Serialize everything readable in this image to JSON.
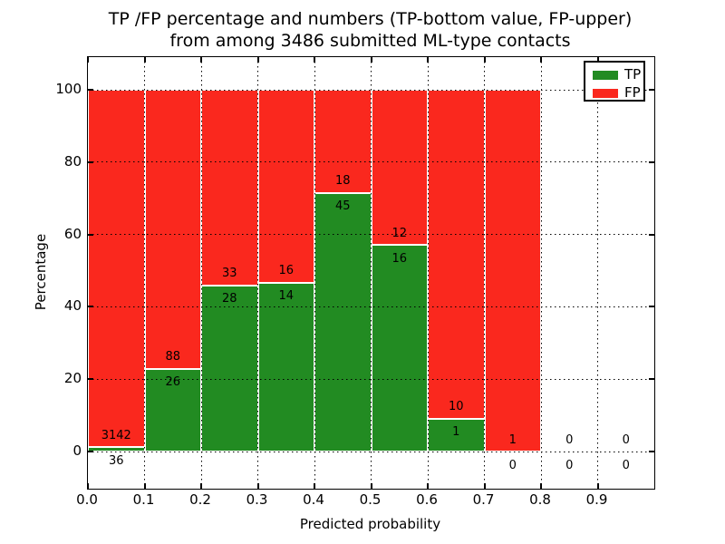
{
  "chart_data": {
    "type": "bar",
    "stacked": true,
    "title_line1": "TP /FP percentage and numbers (TP-bottom value, FP-upper)",
    "title_line2": "from among 3486 submitted ML-type contacts",
    "total_submitted_contacts": 3486,
    "xlabel": "Predicted probability",
    "ylabel": "Percentage",
    "xlim": [
      0.0,
      1.0
    ],
    "ylim_display": [
      -10.5,
      110.3
    ],
    "x_tick_labels": [
      "0.0",
      "0.1",
      "0.2",
      "0.3",
      "0.4",
      "0.5",
      "0.6",
      "0.7",
      "0.8",
      "0.9"
    ],
    "x_tick_values": [
      0.0,
      0.1,
      0.2,
      0.3,
      0.4,
      0.5,
      0.6,
      0.7,
      0.8,
      0.9
    ],
    "y_tick_labels": [
      "0",
      "20",
      "40",
      "60",
      "80",
      "100"
    ],
    "y_tick_values": [
      0,
      20,
      40,
      60,
      80,
      100
    ],
    "grid": {
      "style": "dotted",
      "color": "#000000",
      "drawn_above_bars": true
    },
    "colors": {
      "tp": "#228b22",
      "fp": "#fa281e",
      "bar_edge": "#ffffff",
      "text": "#000000"
    },
    "legend": {
      "position": "upper right",
      "entries": [
        {
          "label": "TP",
          "color_key": "tp"
        },
        {
          "label": "FP",
          "color_key": "fp"
        }
      ]
    },
    "bins": [
      {
        "range": "0.0-0.1",
        "tp": 36,
        "fp": 3142,
        "tp_pct": 1.13,
        "fp_pct": 98.87,
        "bar": true
      },
      {
        "range": "0.1-0.2",
        "tp": 26,
        "fp": 88,
        "tp_pct": 22.81,
        "fp_pct": 77.19,
        "bar": true
      },
      {
        "range": "0.2-0.3",
        "tp": 28,
        "fp": 33,
        "tp_pct": 45.9,
        "fp_pct": 54.1,
        "bar": true
      },
      {
        "range": "0.3-0.4",
        "tp": 14,
        "fp": 16,
        "tp_pct": 46.67,
        "fp_pct": 53.33,
        "bar": true
      },
      {
        "range": "0.4-0.5",
        "tp": 45,
        "fp": 18,
        "tp_pct": 71.43,
        "fp_pct": 28.57,
        "bar": true
      },
      {
        "range": "0.5-0.6",
        "tp": 16,
        "fp": 12,
        "tp_pct": 57.14,
        "fp_pct": 42.86,
        "bar": true
      },
      {
        "range": "0.6-0.7",
        "tp": 1,
        "fp": 10,
        "tp_pct": 9.09,
        "fp_pct": 90.91,
        "bar": true
      },
      {
        "range": "0.7-0.8",
        "tp": 0,
        "fp": 1,
        "tp_pct": 0.0,
        "fp_pct": 100.0,
        "bar": true
      },
      {
        "range": "0.8-0.9",
        "tp": 0,
        "fp": 0,
        "tp_pct": null,
        "fp_pct": null,
        "bar": false
      },
      {
        "range": "0.9-1.0",
        "tp": 0,
        "fp": 0,
        "tp_pct": null,
        "fp_pct": null,
        "bar": false
      }
    ]
  }
}
